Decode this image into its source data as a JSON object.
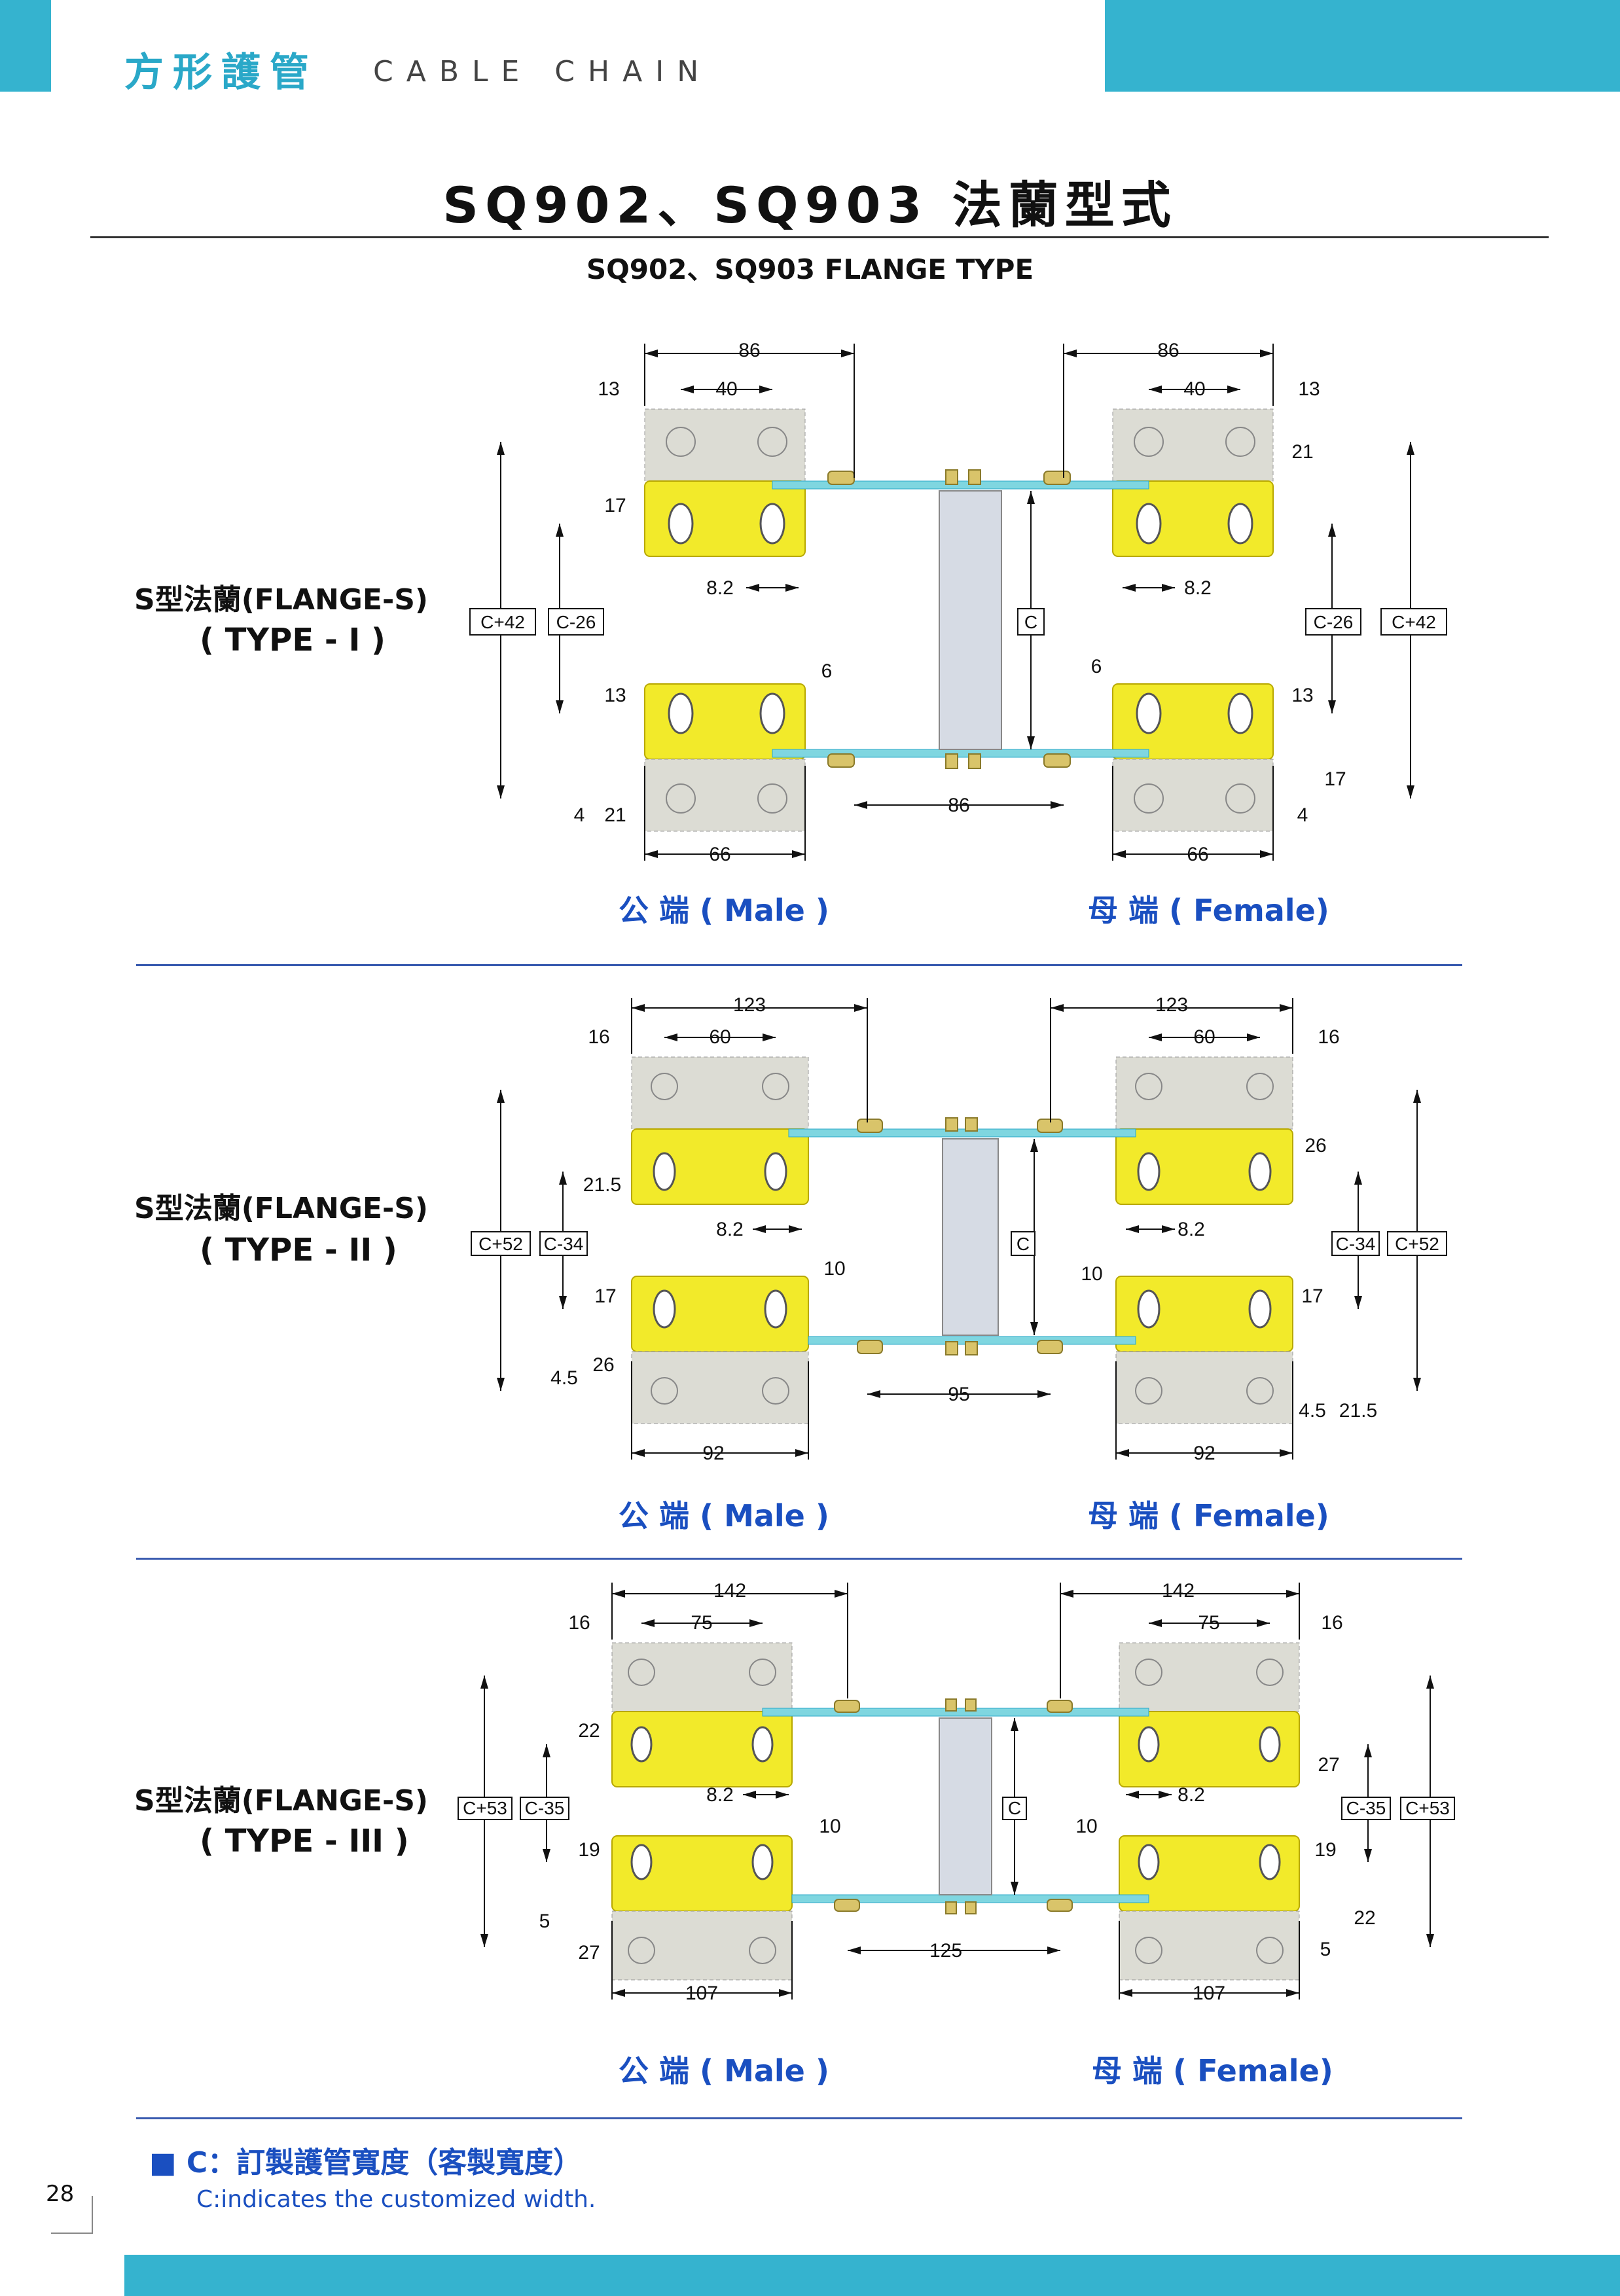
{
  "header": {
    "cn": "方形護管",
    "en": "CABLE CHAIN"
  },
  "title": "SQ902、SQ903 法蘭型式",
  "subtitle": "SQ902、SQ903 FLANGE TYPE",
  "colors": {
    "accent": "#35b3cf",
    "flange_yellow": "#f2ea2a",
    "flange_gray": "#dcdcd4",
    "blue_text": "#1a4fc0"
  },
  "sections": [
    {
      "flange_label": "S型法蘭(FLANGE-S)",
      "type_label": "( TYPE - I )",
      "male": "公 端 ( Male )",
      "female": "母 端 ( Female)",
      "dims": {
        "top_total": "86",
        "top_inner": "40",
        "top_side": "13",
        "gap_v": "17",
        "gap_v2": "21",
        "hole": "8.2",
        "offset": "6",
        "low_a": "13",
        "low_b": "4",
        "low_c": "21",
        "low_d": "17",
        "bottom_span": "86",
        "bottom_width": "66",
        "box_outer": "C+42",
        "box_inner": "C-26",
        "box_c": "C"
      }
    },
    {
      "flange_label": "S型法蘭(FLANGE-S)",
      "type_label": "( TYPE - II )",
      "male": "公 端 ( Male )",
      "female": "母 端 ( Female)",
      "dims": {
        "top_total": "123",
        "top_inner": "60",
        "top_side": "16",
        "gap_v": "21.5",
        "gap_v2": "26",
        "hole": "8.2",
        "offset": "10",
        "low_a": "17",
        "low_b": "4.5",
        "low_c": "26",
        "low_d": "21.5",
        "bottom_span": "95",
        "bottom_width": "92",
        "box_outer": "C+52",
        "box_inner": "C-34",
        "box_c": "C"
      }
    },
    {
      "flange_label": "S型法蘭(FLANGE-S)",
      "type_label": "( TYPE - III )",
      "male": "公 端 ( Male )",
      "female": "母 端 ( Female)",
      "dims": {
        "top_total": "142",
        "top_inner": "75",
        "top_side": "16",
        "gap_v": "22",
        "gap_v2": "27",
        "hole": "8.2",
        "offset": "10",
        "low_a": "19",
        "low_b": "5",
        "low_c": "27",
        "low_d": "22",
        "bottom_span": "125",
        "bottom_width": "107",
        "box_outer": "C+53",
        "box_inner": "C-35",
        "box_c": "C"
      }
    }
  ],
  "note": {
    "cn": "■ C：訂製護管寬度（客製寬度）",
    "en": "C:indicates the customized width."
  },
  "page_number": "28"
}
